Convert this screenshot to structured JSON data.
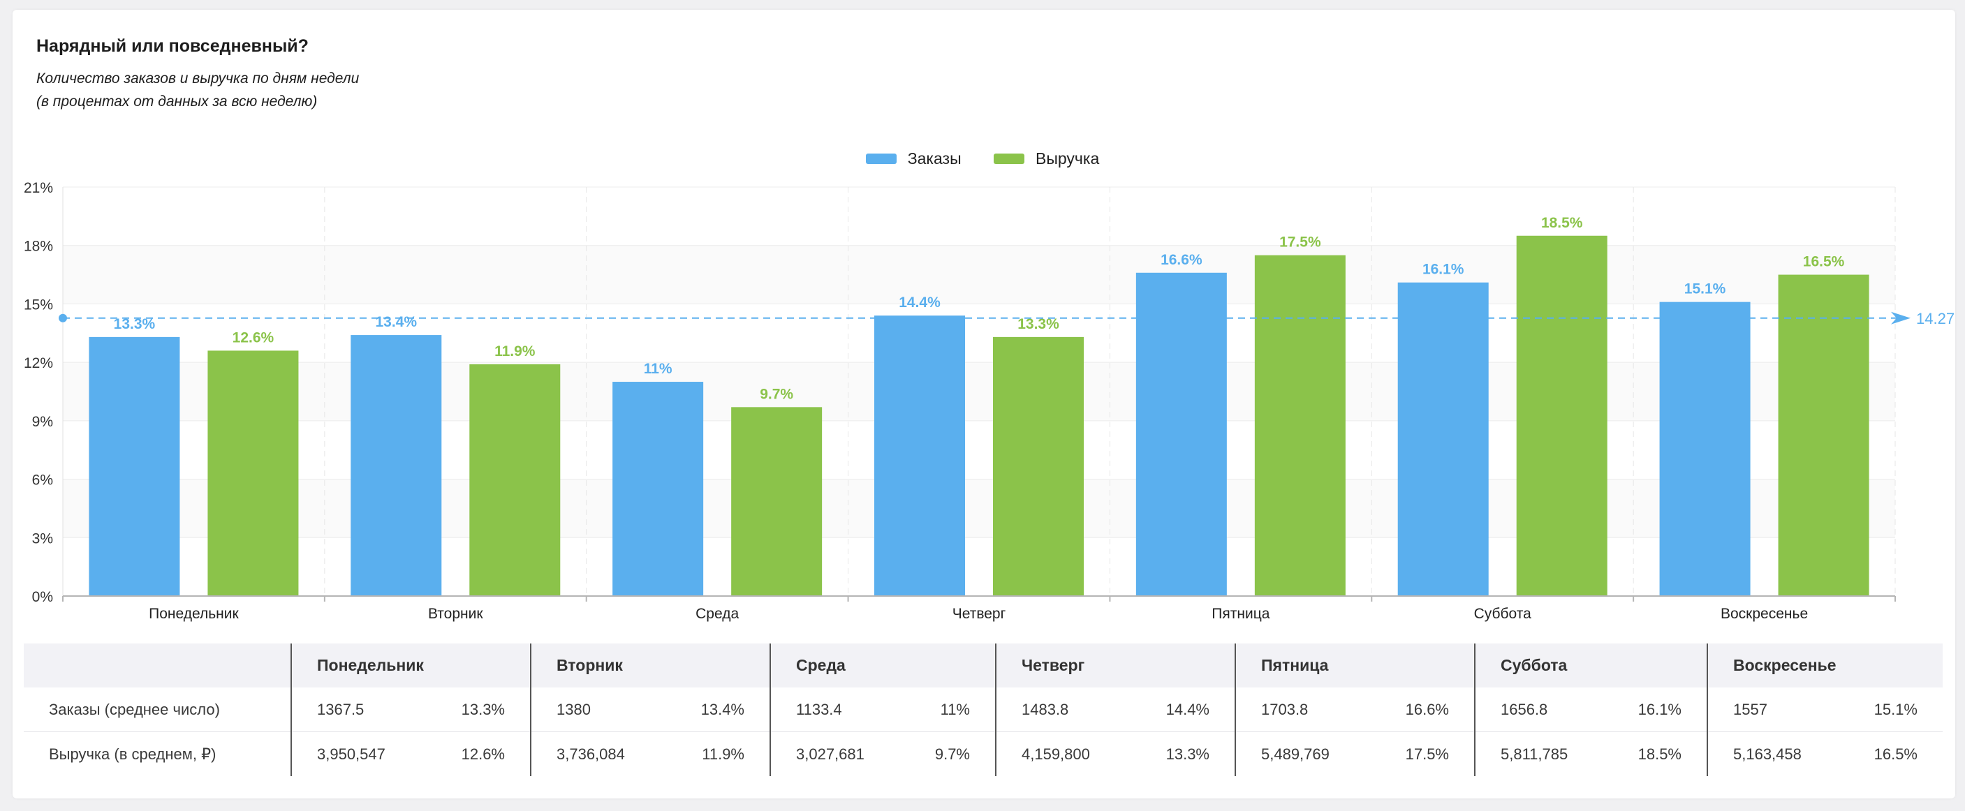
{
  "header": {
    "title": "Нарядный или повседневный?",
    "subtitle_line1": "Количество заказов и выручка по дням недели",
    "subtitle_line2": "(в процентах от данных за всю неделю)"
  },
  "colors": {
    "orders": "#5aafee",
    "revenue": "#8bc34a"
  },
  "chart_data": {
    "type": "bar",
    "categories": [
      "Понедельник",
      "Вторник",
      "Среда",
      "Четверг",
      "Пятница",
      "Суббота",
      "Воскресенье"
    ],
    "series": [
      {
        "name": "Заказы",
        "values": [
          13.3,
          13.4,
          11,
          14.4,
          16.6,
          16.1,
          15.1
        ],
        "labels": [
          "13.3%",
          "13.4%",
          "11%",
          "14.4%",
          "16.6%",
          "16.1%",
          "15.1%"
        ]
      },
      {
        "name": "Выручка",
        "values": [
          12.6,
          11.9,
          9.7,
          13.3,
          17.5,
          18.5,
          16.5
        ],
        "labels": [
          "12.6%",
          "11.9%",
          "9.7%",
          "13.3%",
          "17.5%",
          "18.5%",
          "16.5%"
        ]
      }
    ],
    "ylim": [
      0,
      21
    ],
    "yticks": [
      0,
      3,
      6,
      9,
      12,
      15,
      18,
      21
    ],
    "ytick_labels": [
      "0%",
      "3%",
      "6%",
      "9%",
      "12%",
      "15%",
      "18%",
      "21%"
    ],
    "reference_line": {
      "value": 14.27,
      "label": "14.27"
    },
    "grid": true,
    "legend_position": "top-center"
  },
  "table": {
    "columns": [
      "Понедельник",
      "Вторник",
      "Среда",
      "Четверг",
      "Пятница",
      "Суббота",
      "Воскресенье"
    ],
    "rows": [
      {
        "label": "Заказы (среднее число)",
        "cells": [
          [
            "1367.5",
            "13.3%"
          ],
          [
            "1380",
            "13.4%"
          ],
          [
            "1133.4",
            "11%"
          ],
          [
            "1483.8",
            "14.4%"
          ],
          [
            "1703.8",
            "16.6%"
          ],
          [
            "1656.8",
            "16.1%"
          ],
          [
            "1557",
            "15.1%"
          ]
        ]
      },
      {
        "label": "Выручка (в среднем, ₽)",
        "cells": [
          [
            "3,950,547",
            "12.6%"
          ],
          [
            "3,736,084",
            "11.9%"
          ],
          [
            "3,027,681",
            "9.7%"
          ],
          [
            "4,159,800",
            "13.3%"
          ],
          [
            "5,489,769",
            "17.5%"
          ],
          [
            "5,811,785",
            "18.5%"
          ],
          [
            "5,163,458",
            "16.5%"
          ]
        ]
      }
    ]
  }
}
